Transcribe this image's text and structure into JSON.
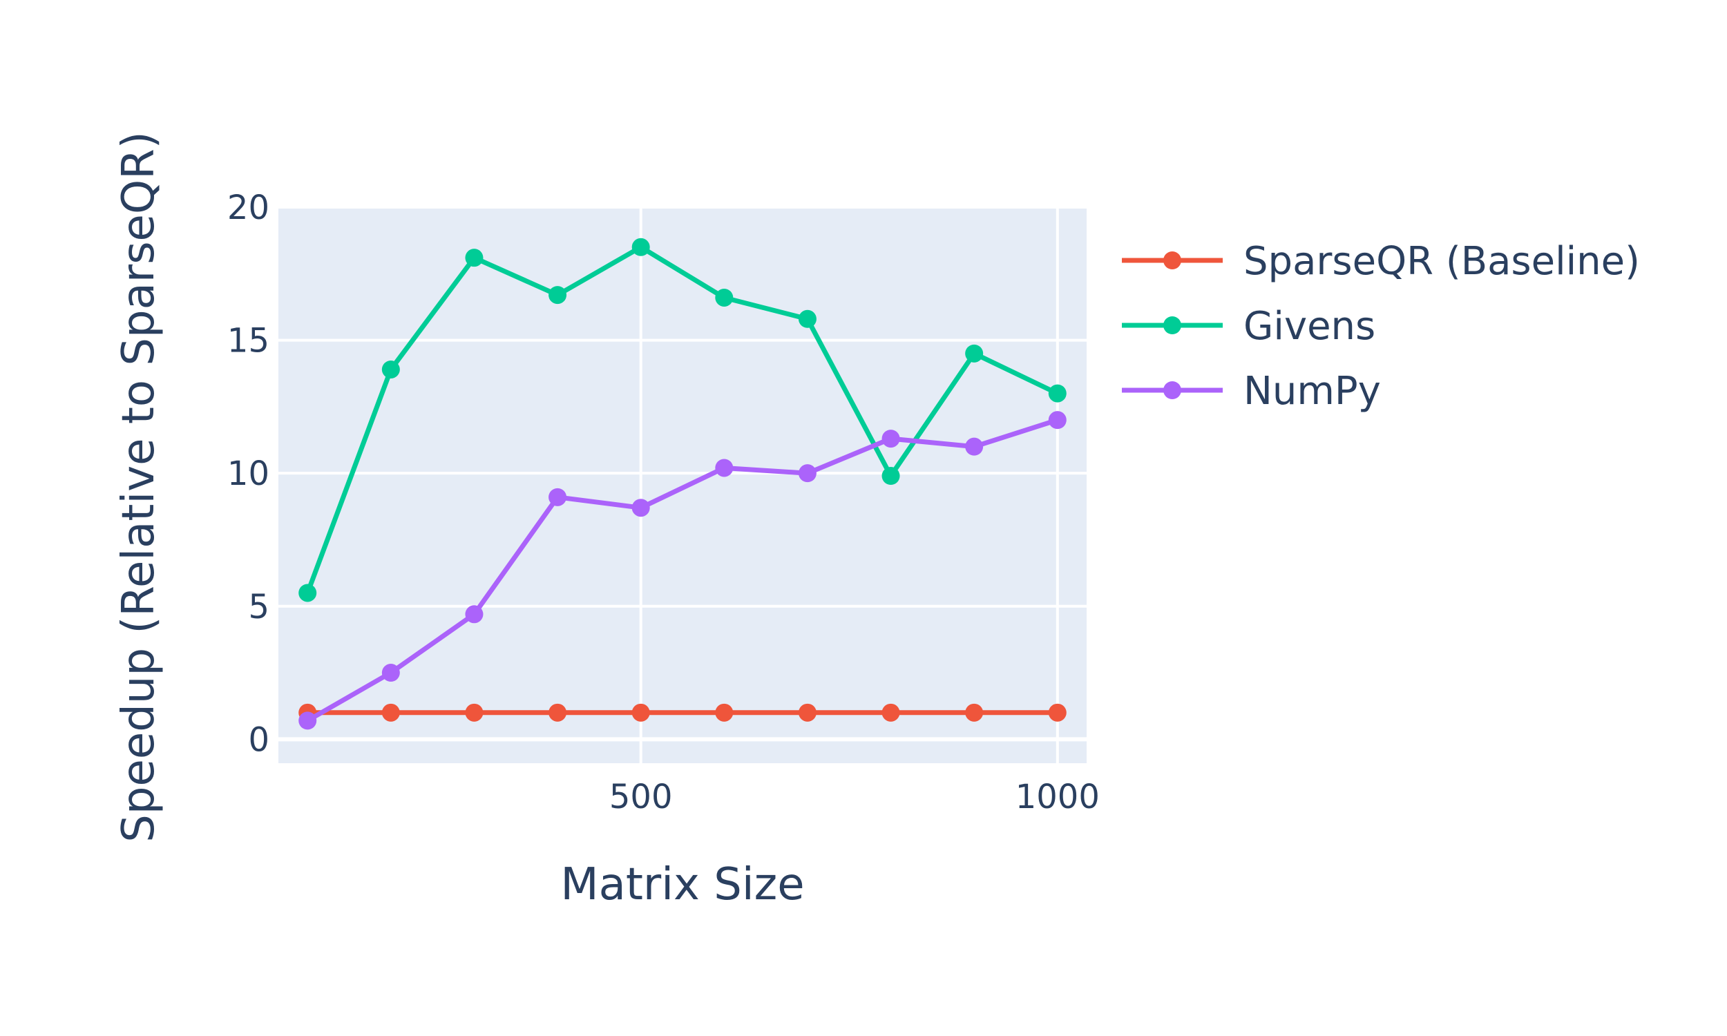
{
  "chart_data": {
    "type": "line",
    "xlabel": "Matrix Size",
    "ylabel": "Speedup (Relative to SparseQR)",
    "xlim": [
      65,
      1035
    ],
    "ylim": [
      -0.9,
      20
    ],
    "xticks": [
      500,
      1000
    ],
    "yticks": [
      0,
      5,
      10,
      15,
      20
    ],
    "grid": true,
    "legend_position": "right",
    "plot_background": "#e5ecf6",
    "x": [
      100,
      200,
      300,
      400,
      500,
      600,
      700,
      800,
      900,
      1000
    ],
    "series": [
      {
        "name": "SparseQR (Baseline)",
        "color": "#ef553b",
        "values": [
          1,
          1,
          1,
          1,
          1,
          1,
          1,
          1,
          1,
          1
        ]
      },
      {
        "name": "Givens",
        "color": "#00cc96",
        "values": [
          5.5,
          13.9,
          18.1,
          16.7,
          18.5,
          16.6,
          15.8,
          9.9,
          14.5,
          13.0
        ]
      },
      {
        "name": "NumPy",
        "color": "#ab63fa",
        "values": [
          0.7,
          2.5,
          4.7,
          9.1,
          8.7,
          10.2,
          10.0,
          11.3,
          11.0,
          12.0
        ]
      }
    ]
  }
}
